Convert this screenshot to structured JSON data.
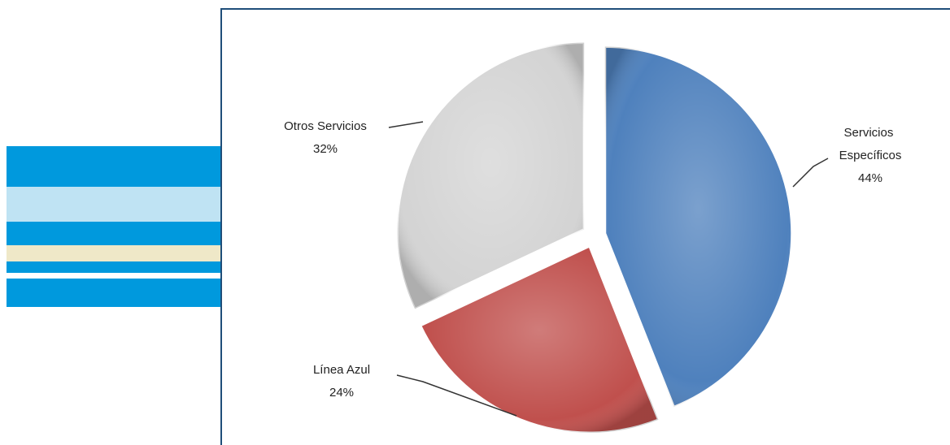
{
  "chart_data": {
    "type": "pie",
    "categories": [
      "Servicios Específicos",
      "Línea Azul",
      "Otros Servicios"
    ],
    "values": [
      44,
      24,
      32
    ],
    "value_labels": [
      "44%",
      "24%",
      "32%"
    ],
    "colors": [
      "#4f81bd",
      "#c0504d",
      "#d4d4d4"
    ]
  }
}
